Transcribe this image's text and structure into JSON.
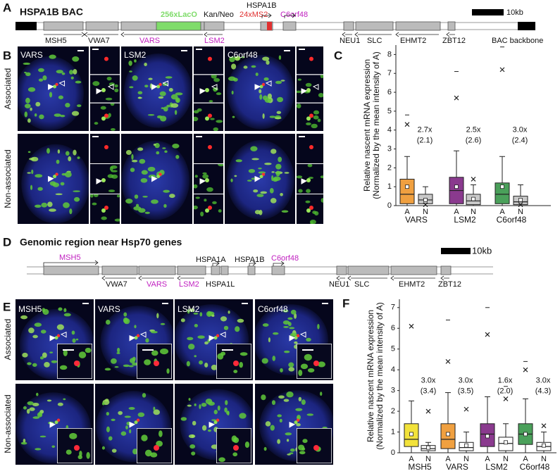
{
  "panel_a": {
    "letter": "A",
    "title": "HSPA1B BAC",
    "lacO": "256xLacO",
    "kan": "Kan/Neo",
    "hspa1b": "HSPA1B",
    "ms2": "24xMS2",
    "c6orf48": "C6orf48",
    "scale": "10kb",
    "genes": [
      "MSH5",
      "VWA7",
      "VARS",
      "LSM2",
      "NEU1",
      "SLC",
      "EHMT2",
      "ZBT12",
      "BAC backbone"
    ]
  },
  "panel_b": {
    "letter": "B",
    "rows": [
      "Associated",
      "Non-associated"
    ],
    "columns": [
      "VARS",
      "LSM2",
      "C6orf48"
    ]
  },
  "panel_d": {
    "letter": "D",
    "title": "Genomic region near Hsp70 genes",
    "scale": "10kb",
    "genes_top": [
      "MSH5",
      "HSPA1A",
      "HSPA1B",
      "C6orf48"
    ],
    "genes_bottom": [
      "VWA7",
      "VARS",
      "LSM2",
      "HSPA1L",
      "NEU1",
      "SLC",
      "EHMT2",
      "ZBT12"
    ]
  },
  "panel_e": {
    "letter": "E",
    "rows": [
      "Associated",
      "Non-associated"
    ],
    "columns": [
      "MSH5",
      "VARS",
      "LSM2",
      "C6orf48"
    ]
  },
  "chart_data": [
    {
      "type": "box",
      "letter": "C",
      "ylabel": [
        "Relative nascent mRNA expression",
        "(Normalized by the mean intensity of A)"
      ],
      "ylim": [
        0,
        8.5
      ],
      "yticks": [
        0,
        1,
        2,
        3,
        4,
        5,
        6,
        7,
        8
      ],
      "groups": [
        {
          "name": "VARS",
          "fold": "2.7x",
          "ratio": "(2.1)",
          "boxes": [
            {
              "name": "A",
              "color": "#f0a040",
              "whisker_low": 0,
              "q1": 0.1,
              "median": 0.6,
              "q3": 1.4,
              "whisker_high": 2.6,
              "mean": 1.0,
              "outliers": [
                4.3
              ],
              "extremes": [
                4.8
              ]
            },
            {
              "name": "N",
              "color": "#c8c8c8",
              "whisker_low": 0,
              "q1": 0.1,
              "median": 0.3,
              "q3": 0.6,
              "whisker_high": 1.0,
              "mean": 0.3,
              "outliers": [
                0.05
              ],
              "extremes": []
            }
          ]
        },
        {
          "name": "LSM2",
          "fold": "2.5x",
          "ratio": "(2.6)",
          "boxes": [
            {
              "name": "A",
              "color": "#8a3a8e",
              "whisker_low": 0,
              "q1": 0.1,
              "median": 0.8,
              "q3": 1.5,
              "whisker_high": 2.9,
              "mean": 1.0,
              "outliers": [
                5.7
              ],
              "extremes": [
                7.1
              ]
            },
            {
              "name": "N",
              "color": "#c8c8c8",
              "whisker_low": 0,
              "q1": 0.05,
              "median": 0.25,
              "q3": 0.6,
              "whisker_high": 1.1,
              "mean": 0.35,
              "outliers": [
                1.4
              ],
              "extremes": []
            }
          ]
        },
        {
          "name": "C6orf48",
          "fold": "3.0x",
          "ratio": "(2.4)",
          "boxes": [
            {
              "name": "A",
              "color": "#4aa05a",
              "whisker_low": 0,
              "q1": 0.1,
              "median": 0.6,
              "q3": 1.2,
              "whisker_high": 2.6,
              "mean": 1.0,
              "outliers": [
                7.2
              ],
              "extremes": [
                8.4
              ]
            },
            {
              "name": "N",
              "color": "#c8c8c8",
              "whisker_low": 0,
              "q1": 0.05,
              "median": 0.2,
              "q3": 0.5,
              "whisker_high": 1.1,
              "mean": 0.3,
              "outliers": [
                0.05
              ],
              "extremes": []
            }
          ]
        }
      ]
    },
    {
      "type": "box",
      "letter": "F",
      "ylabel": [
        "Relative nascent mRNA expression",
        "(Normalized by the mean intensity of A)"
      ],
      "ylim": [
        0,
        7.4
      ],
      "yticks": [
        0,
        1,
        2,
        3,
        4,
        5,
        6,
        7
      ],
      "groups": [
        {
          "name": "MSH5",
          "fold": "3.0x",
          "ratio": "(3.4)",
          "boxes": [
            {
              "name": "A",
              "color": "#f2e23a",
              "whisker_low": 0,
              "q1": 0.3,
              "median": 0.65,
              "q3": 1.4,
              "whisker_high": 2.5,
              "mean": 0.9,
              "outliers": [
                6.1
              ],
              "extremes": []
            },
            {
              "name": "N",
              "color": "#ffffff",
              "whisker_low": 0,
              "q1": 0.1,
              "median": 0.2,
              "q3": 0.35,
              "whisker_high": 0.5,
              "mean": 0.25,
              "outliers": [
                2.0
              ],
              "extremes": []
            }
          ]
        },
        {
          "name": "VARS",
          "fold": "3.0x",
          "ratio": "(3.5)",
          "boxes": [
            {
              "name": "A",
              "color": "#f0a040",
              "whisker_low": 0,
              "q1": 0.2,
              "median": 0.65,
              "q3": 1.4,
              "whisker_high": 2.9,
              "mean": 0.9,
              "outliers": [
                4.4
              ],
              "extremes": [
                6.4
              ]
            },
            {
              "name": "N",
              "color": "#ffffff",
              "whisker_low": 0,
              "q1": 0.1,
              "median": 0.25,
              "q3": 0.5,
              "whisker_high": 1.0,
              "mean": 0.35,
              "outliers": [
                2.1
              ],
              "extremes": []
            }
          ]
        },
        {
          "name": "LSM2",
          "fold": "1.6x",
          "ratio": "(2.0)",
          "boxes": [
            {
              "name": "A",
              "color": "#8a3a8e",
              "whisker_low": 0,
              "q1": 0.3,
              "median": 0.9,
              "q3": 1.4,
              "whisker_high": 2.7,
              "mean": 0.8,
              "outliers": [
                5.7
              ],
              "extremes": [
                7.0
              ]
            },
            {
              "name": "N",
              "color": "#ffffff",
              "whisker_low": 0,
              "q1": 0.1,
              "median": 0.45,
              "q3": 0.75,
              "whisker_high": 1.4,
              "mean": 0.5,
              "outliers": [
                2.6
              ],
              "extremes": [
                3.2
              ]
            }
          ]
        },
        {
          "name": "C6orf48",
          "fold": "3.0x",
          "ratio": "(4.3)",
          "boxes": [
            {
              "name": "A",
              "color": "#4aa05a",
              "whisker_low": 0,
              "q1": 0.4,
              "median": 0.9,
              "q3": 1.4,
              "whisker_high": 2.6,
              "mean": 0.9,
              "outliers": [
                4.0
              ],
              "extremes": [
                4.4
              ]
            },
            {
              "name": "N",
              "color": "#ffffff",
              "whisker_low": 0,
              "q1": 0.1,
              "median": 0.3,
              "q3": 0.5,
              "whisker_high": 1.0,
              "mean": 0.35,
              "outliers": [
                1.3
              ],
              "extremes": []
            }
          ]
        }
      ]
    }
  ]
}
